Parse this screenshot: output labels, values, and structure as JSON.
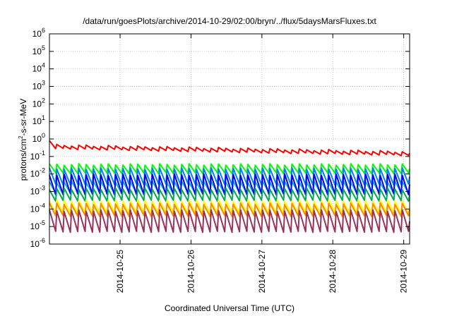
{
  "chart_data": {
    "type": "line",
    "title": "/data/run/goesPlots/archive/2014-10-29/02:00/bryn/../flux/5daysMarsFluxes.txt",
    "xlabel": "Coordinated Universal Time (UTC)",
    "ylabel": {
      "prefix": "protons/cm",
      "sup": "2",
      "suffix": "-s-sr-MeV"
    },
    "y_scale": "log",
    "ylim_exponents": [
      -6,
      6
    ],
    "y_ticks": [
      {
        "base": "10",
        "exp": "-6"
      },
      {
        "base": "10",
        "exp": "-5"
      },
      {
        "base": "10",
        "exp": "-4"
      },
      {
        "base": "10",
        "exp": "-3"
      },
      {
        "base": "10",
        "exp": "-2"
      },
      {
        "base": "10",
        "exp": "-1"
      },
      {
        "base": "10",
        "exp": "0"
      },
      {
        "base": "10",
        "exp": "1"
      },
      {
        "base": "10",
        "exp": "2"
      },
      {
        "base": "10",
        "exp": "3"
      },
      {
        "base": "10",
        "exp": "4"
      },
      {
        "base": "10",
        "exp": "5"
      },
      {
        "base": "10",
        "exp": "6"
      }
    ],
    "xlim": [
      "2014-10-24T00:05",
      "2014-10-29T02:00"
    ],
    "x_ticks": [
      "2014-10-25",
      "2014-10-26",
      "2014-10-27",
      "2014-10-28",
      "2014-10-29"
    ],
    "grid": true,
    "series": [
      {
        "color": "#ff0000",
        "low": 0.28,
        "high": 0.45,
        "start_high": 0.8,
        "end_value": 0.17,
        "trend": "decreasing",
        "periods": 49
      },
      {
        "color": "#00ff00",
        "low": 0.011,
        "high": 0.035,
        "periods": 49
      },
      {
        "color": "#0080ff",
        "low": 0.0025,
        "high": 0.02,
        "periods": 49
      },
      {
        "color": "#00c0c0",
        "low": 0.0008,
        "high": 0.0035,
        "periods": 49
      },
      {
        "color": "#0000ff",
        "low": 0.0007,
        "high": 0.009,
        "periods": 49
      },
      {
        "color": "#00aa55",
        "low": 0.0003,
        "high": 0.0014,
        "periods": 49
      },
      {
        "color": "#ffff00",
        "low": 6e-05,
        "high": 0.0003,
        "periods": 49
      },
      {
        "color": "#ff8800",
        "low": 4e-05,
        "high": 0.0002,
        "periods": 49
      },
      {
        "color": "#99335c",
        "low": 5e-06,
        "high": 8e-05,
        "periods": 49
      }
    ]
  }
}
